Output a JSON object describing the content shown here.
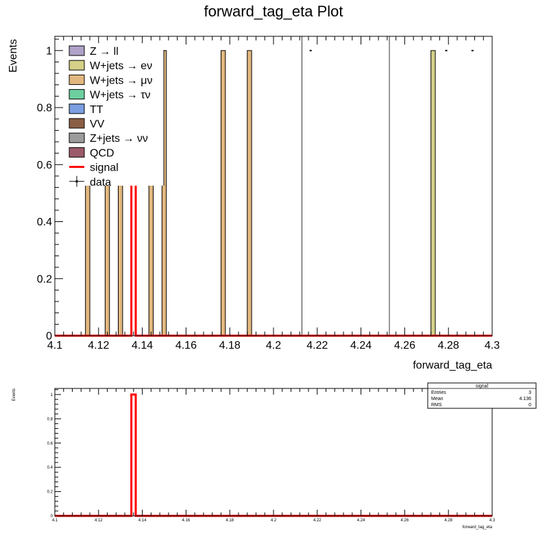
{
  "chart_data": [
    {
      "type": "bar",
      "title": "forward_tag_eta Plot",
      "xlabel": "forward_tag_eta",
      "ylabel": "Events",
      "xlim": [
        4.1,
        4.3
      ],
      "ylim": [
        0,
        1.05
      ],
      "x_ticks": [
        "4.1",
        "4.12",
        "4.14",
        "4.16",
        "4.18",
        "4.2",
        "4.22",
        "4.24",
        "4.26",
        "4.28",
        "4.3"
      ],
      "y_ticks": [
        "0",
        "0.2",
        "0.4",
        "0.6",
        "0.8",
        "1"
      ],
      "grid": false,
      "legend_position": "top-left",
      "legend": [
        {
          "label": "Z → ll",
          "color": "#b0a2c8",
          "kind": "fill"
        },
        {
          "label": "W+jets → eν",
          "color": "#d4d088",
          "kind": "fill"
        },
        {
          "label": "W+jets → μν",
          "color": "#e2b77f",
          "kind": "fill"
        },
        {
          "label": "W+jets → τν",
          "color": "#6dcf9f",
          "kind": "fill"
        },
        {
          "label": "TT",
          "color": "#7a9ee0",
          "kind": "fill"
        },
        {
          "label": "VV",
          "color": "#8a5e45",
          "kind": "fill"
        },
        {
          "label": "Z+jets → νν",
          "color": "#9c9c9c",
          "kind": "fill"
        },
        {
          "label": "QCD",
          "color": "#9a5a6a",
          "kind": "fill"
        },
        {
          "label": "signal",
          "color": "#ff0000",
          "kind": "line"
        },
        {
          "label": "data",
          "color": "#000000",
          "kind": "marker"
        }
      ],
      "bin_width": 0.002,
      "series": [
        {
          "name": "W+jets → μν",
          "color": "#e2b77f",
          "x": [
            4.115,
            4.124,
            4.13,
            4.144,
            4.15,
            4.177,
            4.189
          ],
          "values": [
            1,
            1,
            1,
            1,
            1,
            1,
            1
          ]
        },
        {
          "name": "W+jets → eν",
          "color": "#d4d088",
          "x": [
            4.273
          ],
          "values": [
            1
          ]
        },
        {
          "name": "signal",
          "color": "#ff0000",
          "x": [
            4.136
          ],
          "values": [
            1
          ]
        },
        {
          "name": "data",
          "color": "#000000",
          "x": [
            4.217,
            4.279,
            4.291
          ],
          "values": [
            1,
            1,
            1
          ]
        }
      ],
      "vertical_lines": [
        4.213,
        4.253
      ]
    },
    {
      "type": "bar",
      "title": "",
      "xlabel": "forward_tag_eta",
      "ylabel": "Events",
      "xlim": [
        4.1,
        4.3
      ],
      "ylim": [
        0,
        1.05
      ],
      "x_ticks": [
        "4.1",
        "4.12",
        "4.14",
        "4.16",
        "4.18",
        "4.2",
        "4.22",
        "4.24",
        "4.26",
        "4.28",
        "4.3"
      ],
      "y_ticks": [
        "0",
        "0.2",
        "0.4",
        "0.6",
        "0.8",
        "1"
      ],
      "bin_width": 0.002,
      "series": [
        {
          "name": "signal",
          "color": "#ff0000",
          "x": [
            4.136
          ],
          "values": [
            1
          ]
        }
      ],
      "stats_box": {
        "title": "signal",
        "rows": [
          {
            "label": "Entries",
            "value": "3"
          },
          {
            "label": "Mean",
            "value": "4.136"
          },
          {
            "label": "RMS",
            "value": "0"
          }
        ]
      }
    }
  ]
}
